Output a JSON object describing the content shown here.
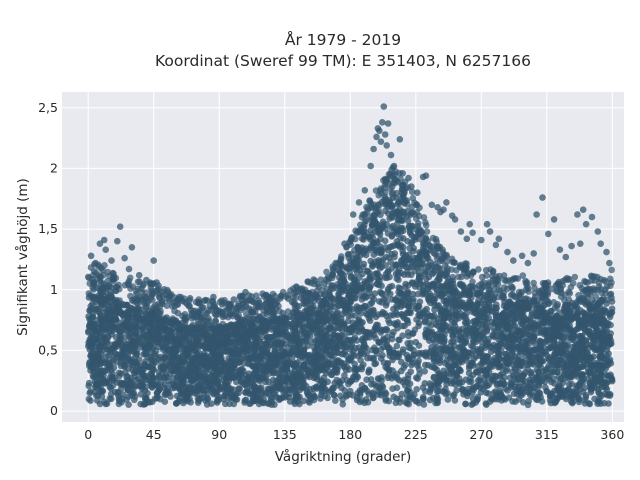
{
  "chart_data": {
    "type": "scatter",
    "title": "År 1979 - 2019",
    "subtitle": "Koordinat (Sweref 99 TM): E 351403, N 6257166",
    "xlabel": "Vågriktning (grader)",
    "ylabel": "Signifikant våghöjd (m)",
    "xlim": [
      -18,
      368
    ],
    "ylim": [
      -0.09,
      2.63
    ],
    "x_ticks": [
      0,
      45,
      90,
      135,
      180,
      225,
      270,
      315,
      360
    ],
    "x_tick_labels": [
      "0",
      "45",
      "90",
      "135",
      "180",
      "225",
      "270",
      "315",
      "360"
    ],
    "y_ticks": [
      0,
      0.5,
      1,
      1.5,
      2,
      2.5
    ],
    "y_tick_labels": [
      "0",
      "0,5",
      "1",
      "1,5",
      "2",
      "2,5"
    ],
    "grid": true,
    "legend": "none",
    "colors": {
      "points": "#33566e",
      "plot_background": "#e9eaf0",
      "grid": "#ffffff"
    },
    "series": [
      {
        "x": [
          0,
          5,
          10,
          15,
          20,
          25,
          30,
          35,
          40,
          45,
          50,
          55,
          60,
          65,
          70,
          75,
          80,
          85,
          90,
          95,
          100,
          105,
          110,
          115,
          120,
          125,
          130,
          135,
          140,
          145,
          150,
          155,
          160,
          165,
          170,
          175,
          180,
          185,
          190,
          195,
          200,
          205,
          210,
          215,
          220,
          225,
          230,
          235,
          240,
          245,
          250,
          255,
          260,
          265,
          270,
          275,
          280,
          285,
          290,
          295,
          300,
          305,
          310,
          315,
          320,
          325,
          330,
          335,
          340,
          345,
          350,
          355,
          360
        ],
        "y_min": [
          0.05,
          0.05,
          0.05,
          0.05,
          0.05,
          0.05,
          0.05,
          0.05,
          0.05,
          0.05,
          0.05,
          0.05,
          0.05,
          0.05,
          0.05,
          0.05,
          0.05,
          0.05,
          0.05,
          0.05,
          0.05,
          0.05,
          0.05,
          0.05,
          0.05,
          0.05,
          0.05,
          0.05,
          0.05,
          0.05,
          0.05,
          0.05,
          0.05,
          0.05,
          0.05,
          0.05,
          0.05,
          0.05,
          0.05,
          0.05,
          0.05,
          0.05,
          0.05,
          0.05,
          0.05,
          0.05,
          0.05,
          0.05,
          0.05,
          0.05,
          0.05,
          0.05,
          0.05,
          0.05,
          0.05,
          0.05,
          0.05,
          0.05,
          0.05,
          0.05,
          0.05,
          0.05,
          0.05,
          0.05,
          0.05,
          0.05,
          0.05,
          0.05,
          0.05,
          0.05,
          0.05,
          0.05,
          0.05
        ],
        "y_max_dense": [
          0.95,
          1.0,
          1.0,
          0.95,
          0.9,
          0.9,
          0.88,
          0.85,
          0.85,
          0.85,
          0.8,
          0.78,
          0.75,
          0.72,
          0.7,
          0.7,
          0.7,
          0.7,
          0.7,
          0.7,
          0.72,
          0.75,
          0.75,
          0.75,
          0.75,
          0.75,
          0.78,
          0.8,
          0.8,
          0.82,
          0.85,
          0.88,
          0.9,
          0.95,
          1.0,
          1.1,
          1.2,
          1.3,
          1.45,
          1.55,
          1.65,
          1.75,
          1.8,
          1.75,
          1.65,
          1.55,
          1.4,
          1.3,
          1.2,
          1.1,
          1.05,
          1.0,
          1.0,
          1.0,
          1.0,
          0.95,
          0.95,
          0.9,
          0.9,
          0.9,
          0.9,
          0.85,
          0.85,
          0.85,
          0.85,
          0.85,
          0.9,
          0.9,
          0.9,
          0.9,
          0.9,
          0.9,
          0.95
        ],
        "outliers": [
          [
            2,
            1.28
          ],
          [
            5,
            1.22
          ],
          [
            8,
            1.38
          ],
          [
            11,
            1.41
          ],
          [
            12,
            1.33
          ],
          [
            16,
            1.24
          ],
          [
            20,
            1.4
          ],
          [
            22,
            1.52
          ],
          [
            25,
            1.26
          ],
          [
            28,
            1.17
          ],
          [
            30,
            1.35
          ],
          [
            35,
            1.12
          ],
          [
            40,
            1.08
          ],
          [
            45,
            1.24
          ],
          [
            47,
            1.06
          ],
          [
            55,
            0.98
          ],
          [
            57,
            0.96
          ],
          [
            70,
            0.93
          ],
          [
            76,
            0.9
          ],
          [
            80,
            0.91
          ],
          [
            86,
            0.94
          ],
          [
            92,
            0.88
          ],
          [
            100,
            0.92
          ],
          [
            106,
            0.95
          ],
          [
            108,
            0.98
          ],
          [
            124,
            0.94
          ],
          [
            132,
            0.93
          ],
          [
            140,
            0.9
          ],
          [
            150,
            0.92
          ],
          [
            162,
            1.05
          ],
          [
            168,
            1.12
          ],
          [
            170,
            1.22
          ],
          [
            176,
            1.38
          ],
          [
            182,
            1.62
          ],
          [
            186,
            1.72
          ],
          [
            190,
            1.82
          ],
          [
            194,
            2.02
          ],
          [
            196,
            2.16
          ],
          [
            198,
            2.26
          ],
          [
            199,
            2.33
          ],
          [
            200,
            2.31
          ],
          [
            201,
            2.22
          ],
          [
            202,
            2.38
          ],
          [
            203,
            2.51
          ],
          [
            204,
            2.28
          ],
          [
            205,
            2.19
          ],
          [
            206,
            2.37
          ],
          [
            208,
            2.11
          ],
          [
            210,
            2.02
          ],
          [
            214,
            2.24
          ],
          [
            216,
            1.96
          ],
          [
            220,
            1.92
          ],
          [
            222,
            1.85
          ],
          [
            226,
            1.8
          ],
          [
            230,
            1.93
          ],
          [
            232,
            1.94
          ],
          [
            236,
            1.7
          ],
          [
            240,
            1.68
          ],
          [
            242,
            1.64
          ],
          [
            244,
            1.66
          ],
          [
            246,
            1.72
          ],
          [
            250,
            1.61
          ],
          [
            252,
            1.58
          ],
          [
            256,
            1.48
          ],
          [
            260,
            1.42
          ],
          [
            262,
            1.54
          ],
          [
            264,
            1.47
          ],
          [
            270,
            1.41
          ],
          [
            274,
            1.54
          ],
          [
            276,
            1.48
          ],
          [
            280,
            1.37
          ],
          [
            282,
            1.42
          ],
          [
            288,
            1.31
          ],
          [
            292,
            1.24
          ],
          [
            298,
            1.28
          ],
          [
            302,
            1.22
          ],
          [
            306,
            1.3
          ],
          [
            308,
            1.62
          ],
          [
            312,
            1.76
          ],
          [
            316,
            1.46
          ],
          [
            320,
            1.58
          ],
          [
            324,
            1.33
          ],
          [
            328,
            1.27
          ],
          [
            332,
            1.36
          ],
          [
            336,
            1.62
          ],
          [
            338,
            1.38
          ],
          [
            340,
            1.66
          ],
          [
            342,
            1.54
          ],
          [
            346,
            1.6
          ],
          [
            350,
            1.48
          ],
          [
            352,
            1.38
          ],
          [
            356,
            1.31
          ],
          [
            358,
            1.22
          ]
        ]
      }
    ]
  }
}
